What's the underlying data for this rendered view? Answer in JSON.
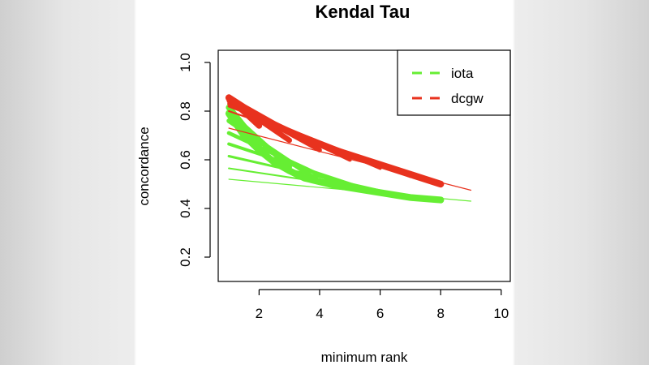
{
  "chart_data": {
    "type": "line",
    "title": "Kendal Tau",
    "xlabel": "minimum rank",
    "ylabel": "concordance",
    "xlim": [
      0.65,
      10.3
    ],
    "ylim": [
      0.1,
      1.05
    ],
    "xticks": [
      2,
      4,
      6,
      8,
      10
    ],
    "xtick_labels": [
      "2",
      "4",
      "6",
      "8",
      "10"
    ],
    "yticks": [
      0.2,
      0.4,
      0.6,
      0.8,
      1.0
    ],
    "ytick_labels": [
      "0.2",
      "0.4",
      "0.6",
      "0.8",
      "1.0"
    ],
    "grid": false,
    "legend_position": "top-right",
    "legend": [
      {
        "label": "iota",
        "color": "#66ee33",
        "style": "dashed"
      },
      {
        "label": "dcgw",
        "color": "#e8321e",
        "style": "dashed"
      }
    ],
    "series": [
      {
        "name": "iota",
        "color": "#66ee33",
        "lines": [
          {
            "x": [
              1,
              9
            ],
            "y": [
              0.52,
              0.43
            ]
          },
          {
            "x": [
              1,
              8
            ],
            "y": [
              0.565,
              0.435
            ]
          },
          {
            "x": [
              1,
              7
            ],
            "y": [
              0.615,
              0.445
            ]
          },
          {
            "x": [
              1,
              6
            ],
            "y": [
              0.665,
              0.46
            ]
          },
          {
            "x": [
              1,
              5
            ],
            "y": [
              0.71,
              0.48
            ]
          },
          {
            "x": [
              1,
              4
            ],
            "y": [
              0.76,
              0.51
            ]
          },
          {
            "x": [
              1,
              3
            ],
            "y": [
              0.795,
              0.57
            ]
          },
          {
            "x": [
              1,
              2
            ],
            "y": [
              0.815,
              0.66
            ]
          },
          {
            "x": [
              1,
              1.5,
              2,
              2.5,
              3,
              3.5,
              4,
              4.5,
              5,
              5.5,
              6,
              6.5,
              7,
              7.5,
              8
            ],
            "y": [
              0.79,
              0.7,
              0.64,
              0.59,
              0.555,
              0.525,
              0.51,
              0.495,
              0.485,
              0.475,
              0.465,
              0.455,
              0.445,
              0.44,
              0.435
            ]
          }
        ]
      },
      {
        "name": "dcgw",
        "color": "#e8321e",
        "lines": [
          {
            "x": [
              1,
              9
            ],
            "y": [
              0.73,
              0.475
            ]
          },
          {
            "x": [
              1,
              8
            ],
            "y": [
              0.8,
              0.5
            ]
          },
          {
            "x": [
              1,
              7
            ],
            "y": [
              0.82,
              0.53
            ]
          },
          {
            "x": [
              1,
              6
            ],
            "y": [
              0.83,
              0.565
            ]
          },
          {
            "x": [
              1,
              5
            ],
            "y": [
              0.84,
              0.6
            ]
          },
          {
            "x": [
              1,
              4
            ],
            "y": [
              0.845,
              0.64
            ]
          },
          {
            "x": [
              1,
              3
            ],
            "y": [
              0.85,
              0.68
            ]
          },
          {
            "x": [
              1,
              2
            ],
            "y": [
              0.855,
              0.74
            ]
          },
          {
            "x": [
              1,
              1.5,
              2,
              2.5,
              3,
              3.5,
              4,
              4.5,
              5,
              5.5,
              6,
              6.5,
              7,
              7.5,
              8
            ],
            "y": [
              0.855,
              0.815,
              0.78,
              0.745,
              0.715,
              0.69,
              0.665,
              0.64,
              0.62,
              0.6,
              0.58,
              0.56,
              0.54,
              0.52,
              0.5
            ]
          }
        ]
      }
    ]
  }
}
